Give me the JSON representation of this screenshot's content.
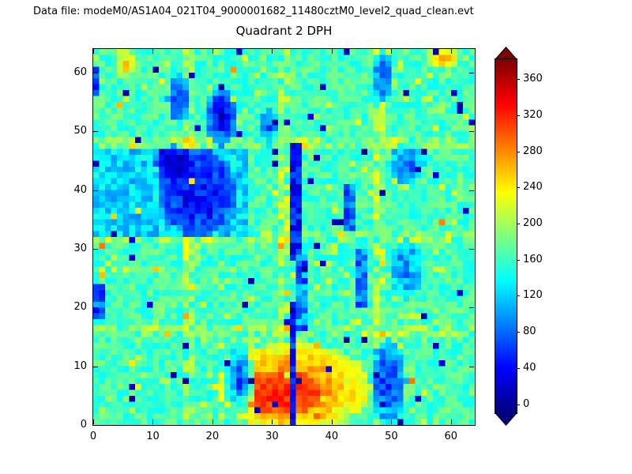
{
  "header": {
    "data_file_label": "Data file: modeM0/AS1A04_021T04_9000001682_11480cztM0_level2_quad_clean.evt"
  },
  "chart_data": {
    "type": "heatmap",
    "title": "Quadrant 2 DPH",
    "xlabel": "",
    "ylabel": "",
    "x_range": [
      0,
      64
    ],
    "y_range": [
      0,
      64
    ],
    "x_ticks": [
      0,
      10,
      20,
      30,
      40,
      50,
      60
    ],
    "y_ticks": [
      0,
      10,
      20,
      30,
      40,
      50,
      60
    ],
    "grid": [
      64,
      64
    ],
    "colormap": "jet",
    "colorbar": {
      "ticks": [
        0,
        40,
        80,
        120,
        160,
        200,
        240,
        280,
        320,
        360
      ],
      "vmin": -10,
      "vmax": 382,
      "extend": "both",
      "under_color": "#00007f",
      "over_color": "#7f0000"
    },
    "synthesis": {
      "seed": 20,
      "base_mean": 162,
      "base_noise": 24,
      "speckle_prob": 0.12,
      "speckle_boost": 55,
      "boundary_indices": [
        15,
        16,
        31,
        32,
        47,
        48
      ],
      "boundary_boost": 50,
      "boundary_prob": 0.6,
      "features": [
        {
          "type": "rect",
          "x": 0,
          "y": 32,
          "w": 26,
          "h": 15,
          "value": 122,
          "noise": 30
        },
        {
          "type": "blob",
          "cx": 17,
          "cy": 39,
          "rx": 6.5,
          "ry": 7.5,
          "value": 42,
          "noise": 30
        },
        {
          "type": "blob",
          "cx": 13,
          "cy": 44,
          "rx": 3,
          "ry": 3,
          "value": 15,
          "noise": 12
        },
        {
          "type": "rect",
          "x": 33,
          "y": 28,
          "w": 2,
          "h": 20,
          "value": 45,
          "noise": 30
        },
        {
          "type": "rect",
          "x": 34,
          "y": 16,
          "w": 2,
          "h": 13,
          "value": 85,
          "noise": 45
        },
        {
          "type": "rect",
          "x": 44,
          "y": 20,
          "w": 2,
          "h": 10,
          "value": 80,
          "noise": 40
        },
        {
          "type": "rect",
          "x": 42,
          "y": 33,
          "w": 2,
          "h": 8,
          "value": 85,
          "noise": 40
        },
        {
          "type": "blob",
          "cx": 21,
          "cy": 52,
          "rx": 2.5,
          "ry": 5,
          "value": 45,
          "noise": 30
        },
        {
          "type": "blob",
          "cx": 14,
          "cy": 55,
          "rx": 2,
          "ry": 4,
          "value": 55,
          "noise": 30
        },
        {
          "type": "blob",
          "cx": 29,
          "cy": 50,
          "rx": 1.5,
          "ry": 3,
          "value": 85,
          "noise": 40
        },
        {
          "type": "blob",
          "cx": 48,
          "cy": 59,
          "rx": 1.5,
          "ry": 4.5,
          "value": 70,
          "noise": 35
        },
        {
          "type": "blob",
          "cx": 52,
          "cy": 26,
          "rx": 2.5,
          "ry": 5,
          "value": 95,
          "noise": 45
        },
        {
          "type": "blob",
          "cx": 52,
          "cy": 44,
          "rx": 3,
          "ry": 3.5,
          "value": 92,
          "noise": 42
        },
        {
          "type": "blob",
          "cx": 33,
          "cy": 6,
          "rx": 13,
          "ry": 7.5,
          "value": 282,
          "noise": 28
        },
        {
          "type": "blob",
          "cx": 31,
          "cy": 5,
          "rx": 7,
          "ry": 4,
          "value": 318,
          "noise": 20
        },
        {
          "type": "blob",
          "cx": 24,
          "cy": 7,
          "rx": 2.5,
          "ry": 5.5,
          "value": 85,
          "noise": 40
        },
        {
          "type": "blob",
          "cx": 49,
          "cy": 7,
          "rx": 3,
          "ry": 7,
          "value": 65,
          "noise": 35
        },
        {
          "type": "rect",
          "x": 33,
          "y": 0,
          "w": 1,
          "h": 21,
          "value": 55,
          "noise": 28
        },
        {
          "type": "rect",
          "x": 0,
          "y": 18,
          "w": 2,
          "h": 6,
          "value": 75,
          "noise": 35
        },
        {
          "type": "rect",
          "x": 0,
          "y": 56,
          "w": 1,
          "h": 5,
          "value": 65,
          "noise": 30
        },
        {
          "type": "blob",
          "cx": 58,
          "cy": 62,
          "rx": 2.5,
          "ry": 1.8,
          "value": 262,
          "noise": 30
        },
        {
          "type": "blob",
          "cx": 5,
          "cy": 61,
          "rx": 1.8,
          "ry": 2,
          "value": 248,
          "noise": 28
        }
      ],
      "dead_pixels": {
        "count": 70,
        "value": 12,
        "noise": 12
      },
      "hot_pixels": {
        "count": 30,
        "value": 255,
        "noise": 50
      }
    }
  }
}
